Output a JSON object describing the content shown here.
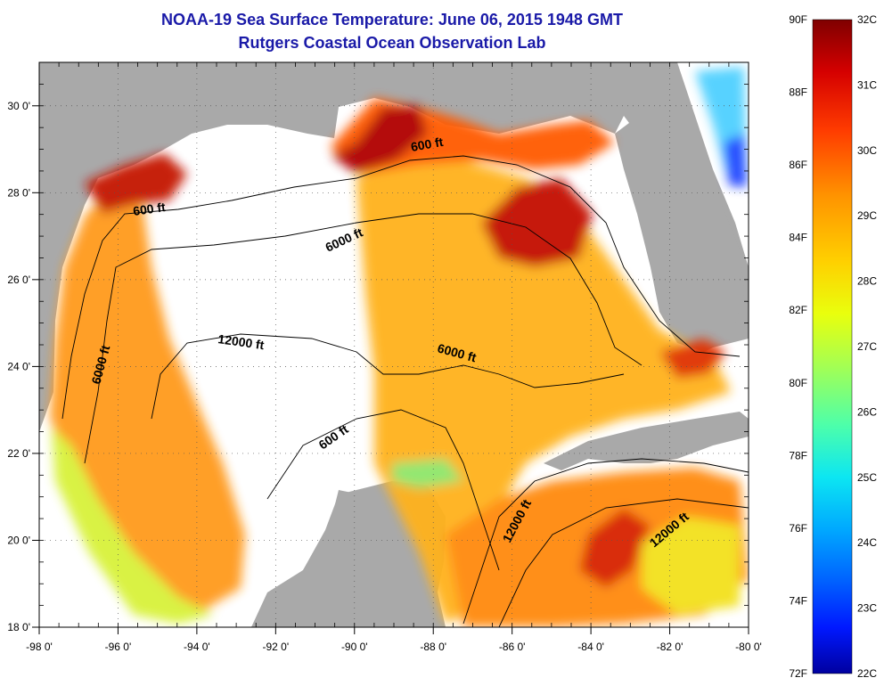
{
  "header": {
    "title": "NOAA-19 Sea Surface Temperature:  June 06, 2015 1948 GMT",
    "subtitle": "Rutgers Coastal Ocean Observation Lab"
  },
  "axes": {
    "lon_ticks": [
      "-98 0'",
      "-96 0'",
      "-94 0'",
      "-92 0'",
      "-90 0'",
      "-88 0'",
      "-86 0'",
      "-84 0'",
      "-82 0'",
      "-80 0'"
    ],
    "lat_ticks": [
      "18 0'",
      "20 0'",
      "22 0'",
      "24 0'",
      "26 0'",
      "28 0'",
      "30 0'"
    ],
    "lon_range": [
      -98,
      -80
    ],
    "lat_range": [
      18,
      31
    ]
  },
  "contour_labels": [
    "600 ft",
    "600 ft",
    "6000 ft",
    "12000 ft",
    "6000 ft",
    "6000 ft",
    "600 ft",
    "12000 ft",
    "12000 ft"
  ],
  "colorbar": {
    "fahrenheit": [
      "90F",
      "88F",
      "86F",
      "84F",
      "82F",
      "80F",
      "78F",
      "76F",
      "74F",
      "72F"
    ],
    "celsius": [
      "32C",
      "31C",
      "30C",
      "29C",
      "28C",
      "27C",
      "26C",
      "25C",
      "24C",
      "23C",
      "22C"
    ],
    "colors": [
      "#7f0000",
      "#d50000",
      "#ff3c00",
      "#ff9400",
      "#ffd000",
      "#e9ff0d",
      "#a4ff53",
      "#4dffaa",
      "#0ce6f2",
      "#00a8ff",
      "#0060ff",
      "#0018ff",
      "#00009f"
    ]
  },
  "colors": {
    "land": "#a9a9a9",
    "no_data": "#ffffff",
    "title": "#1a1aa8"
  }
}
